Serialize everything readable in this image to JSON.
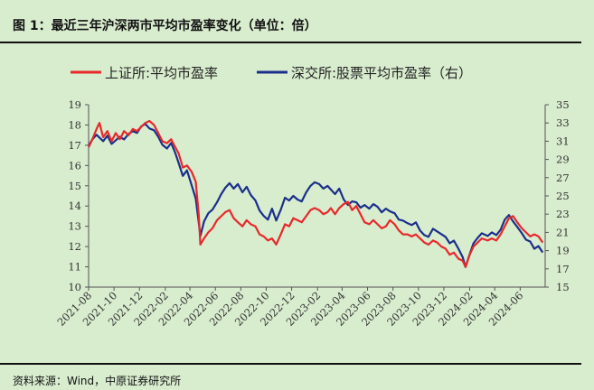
{
  "figure": {
    "title": "图 1：最近三年沪深两市平均市盈率变化（单位：倍）",
    "source": "资料来源：Wind，中原证券研究所"
  },
  "colors": {
    "background": "#d8ecce",
    "sh_series": "#e8282b",
    "sz_series": "#1a2f8a",
    "axis": "#555555"
  },
  "chart_data": {
    "type": "line",
    "title": "",
    "legend_position": "top",
    "grid": false,
    "x_tick_labels": [
      "2021-08",
      "2021-10",
      "2021-12",
      "2022-02",
      "2022-04",
      "2022-06",
      "2022-08",
      "2022-10",
      "2022-12",
      "2023-02",
      "2023-04",
      "2023-06",
      "2023-08",
      "2023-10",
      "2023-12",
      "2024-02",
      "2024-04",
      "2024-06"
    ],
    "x_range": [
      "2021-08-01",
      "2024-07-31"
    ],
    "y_left": {
      "min": 10,
      "max": 19,
      "ticks": [
        10,
        11,
        12,
        13,
        14,
        15,
        16,
        17,
        18,
        19
      ]
    },
    "y_right": {
      "min": 15,
      "max": 35,
      "ticks": [
        15,
        17,
        19,
        21,
        23,
        25,
        27,
        29,
        31,
        33,
        35
      ]
    },
    "series": [
      {
        "name": "上证所:平均市盈率",
        "axis": "left",
        "points": [
          [
            "2021-08-01",
            16.9
          ],
          [
            "2021-08-10",
            17.3
          ],
          [
            "2021-08-20",
            17.8
          ],
          [
            "2021-08-27",
            18.1
          ],
          [
            "2021-09-05",
            17.4
          ],
          [
            "2021-09-15",
            17.7
          ],
          [
            "2021-09-25",
            17.2
          ],
          [
            "2021-10-05",
            17.6
          ],
          [
            "2021-10-15",
            17.3
          ],
          [
            "2021-10-25",
            17.7
          ],
          [
            "2021-11-05",
            17.5
          ],
          [
            "2021-11-15",
            17.8
          ],
          [
            "2021-11-25",
            17.7
          ],
          [
            "2021-12-05",
            17.9
          ],
          [
            "2021-12-15",
            18.1
          ],
          [
            "2021-12-25",
            18.2
          ],
          [
            "2022-01-05",
            18.0
          ],
          [
            "2022-01-15",
            17.6
          ],
          [
            "2022-01-25",
            17.2
          ],
          [
            "2022-02-05",
            17.1
          ],
          [
            "2022-02-15",
            17.3
          ],
          [
            "2022-02-25",
            16.9
          ],
          [
            "2022-03-05",
            16.6
          ],
          [
            "2022-03-15",
            15.9
          ],
          [
            "2022-03-25",
            16.0
          ],
          [
            "2022-04-05",
            15.7
          ],
          [
            "2022-04-15",
            15.2
          ],
          [
            "2022-04-22",
            13.6
          ],
          [
            "2022-04-26",
            12.1
          ],
          [
            "2022-05-05",
            12.4
          ],
          [
            "2022-05-15",
            12.7
          ],
          [
            "2022-05-25",
            12.9
          ],
          [
            "2022-06-05",
            13.3
          ],
          [
            "2022-06-15",
            13.5
          ],
          [
            "2022-06-25",
            13.7
          ],
          [
            "2022-07-05",
            13.8
          ],
          [
            "2022-07-15",
            13.4
          ],
          [
            "2022-07-25",
            13.2
          ],
          [
            "2022-08-05",
            13.0
          ],
          [
            "2022-08-15",
            13.3
          ],
          [
            "2022-08-25",
            13.1
          ],
          [
            "2022-09-05",
            13.0
          ],
          [
            "2022-09-15",
            12.6
          ],
          [
            "2022-09-25",
            12.5
          ],
          [
            "2022-10-05",
            12.3
          ],
          [
            "2022-10-15",
            12.4
          ],
          [
            "2022-10-25",
            12.1
          ],
          [
            "2022-11-05",
            12.6
          ],
          [
            "2022-11-15",
            13.1
          ],
          [
            "2022-11-25",
            13.0
          ],
          [
            "2022-12-05",
            13.4
          ],
          [
            "2022-12-15",
            13.3
          ],
          [
            "2022-12-25",
            13.2
          ],
          [
            "2023-01-05",
            13.5
          ],
          [
            "2023-01-15",
            13.8
          ],
          [
            "2023-01-25",
            13.9
          ],
          [
            "2023-02-05",
            13.8
          ],
          [
            "2023-02-15",
            13.6
          ],
          [
            "2023-02-25",
            13.7
          ],
          [
            "2023-03-05",
            13.9
          ],
          [
            "2023-03-15",
            13.6
          ],
          [
            "2023-03-25",
            13.9
          ],
          [
            "2023-04-05",
            14.1
          ],
          [
            "2023-04-15",
            14.2
          ],
          [
            "2023-04-25",
            13.8
          ],
          [
            "2023-05-05",
            14.0
          ],
          [
            "2023-05-15",
            13.6
          ],
          [
            "2023-05-25",
            13.2
          ],
          [
            "2023-06-05",
            13.1
          ],
          [
            "2023-06-15",
            13.3
          ],
          [
            "2023-06-25",
            13.1
          ],
          [
            "2023-07-05",
            12.9
          ],
          [
            "2023-07-15",
            13.0
          ],
          [
            "2023-07-25",
            13.3
          ],
          [
            "2023-08-05",
            13.1
          ],
          [
            "2023-08-15",
            12.8
          ],
          [
            "2023-08-25",
            12.6
          ],
          [
            "2023-09-05",
            12.6
          ],
          [
            "2023-09-15",
            12.5
          ],
          [
            "2023-09-25",
            12.6
          ],
          [
            "2023-10-05",
            12.4
          ],
          [
            "2023-10-15",
            12.2
          ],
          [
            "2023-10-25",
            12.1
          ],
          [
            "2023-11-05",
            12.3
          ],
          [
            "2023-11-15",
            12.2
          ],
          [
            "2023-11-25",
            12.0
          ],
          [
            "2023-12-05",
            11.9
          ],
          [
            "2023-12-15",
            11.6
          ],
          [
            "2023-12-25",
            11.7
          ],
          [
            "2024-01-05",
            11.4
          ],
          [
            "2024-01-15",
            11.3
          ],
          [
            "2024-01-22",
            11.0
          ],
          [
            "2024-02-01",
            11.6
          ],
          [
            "2024-02-10",
            12.0
          ],
          [
            "2024-02-20",
            12.2
          ],
          [
            "2024-03-01",
            12.4
          ],
          [
            "2024-03-15",
            12.3
          ],
          [
            "2024-03-25",
            12.4
          ],
          [
            "2024-04-05",
            12.3
          ],
          [
            "2024-04-15",
            12.6
          ],
          [
            "2024-04-25",
            13.0
          ],
          [
            "2024-05-05",
            13.4
          ],
          [
            "2024-05-15",
            13.5
          ],
          [
            "2024-05-25",
            13.2
          ],
          [
            "2024-06-05",
            12.9
          ],
          [
            "2024-06-15",
            12.7
          ],
          [
            "2024-06-25",
            12.5
          ],
          [
            "2024-07-05",
            12.6
          ],
          [
            "2024-07-15",
            12.5
          ],
          [
            "2024-07-25",
            12.2
          ]
        ]
      },
      {
        "name": "深交所:股票平均市盈率（右）",
        "axis": "right",
        "points": [
          [
            "2021-08-01",
            30.5
          ],
          [
            "2021-08-10",
            31.2
          ],
          [
            "2021-08-20",
            31.7
          ],
          [
            "2021-08-27",
            31.4
          ],
          [
            "2021-09-05",
            31.0
          ],
          [
            "2021-09-15",
            31.6
          ],
          [
            "2021-09-25",
            30.7
          ],
          [
            "2021-10-05",
            31.1
          ],
          [
            "2021-10-15",
            31.5
          ],
          [
            "2021-10-25",
            31.2
          ],
          [
            "2021-11-05",
            31.8
          ],
          [
            "2021-11-15",
            32.1
          ],
          [
            "2021-11-25",
            31.9
          ],
          [
            "2021-12-05",
            32.6
          ],
          [
            "2021-12-15",
            32.9
          ],
          [
            "2021-12-25",
            32.4
          ],
          [
            "2022-01-05",
            32.2
          ],
          [
            "2022-01-15",
            31.5
          ],
          [
            "2022-01-25",
            30.6
          ],
          [
            "2022-02-05",
            30.2
          ],
          [
            "2022-02-15",
            30.8
          ],
          [
            "2022-02-25",
            29.7
          ],
          [
            "2022-03-05",
            28.6
          ],
          [
            "2022-03-15",
            27.2
          ],
          [
            "2022-03-25",
            27.8
          ],
          [
            "2022-04-05",
            26.2
          ],
          [
            "2022-04-15",
            24.7
          ],
          [
            "2022-04-22",
            22.1
          ],
          [
            "2022-04-26",
            20.6
          ],
          [
            "2022-05-05",
            22.2
          ],
          [
            "2022-05-15",
            23.1
          ],
          [
            "2022-05-25",
            23.5
          ],
          [
            "2022-06-05",
            24.3
          ],
          [
            "2022-06-15",
            25.2
          ],
          [
            "2022-06-25",
            25.9
          ],
          [
            "2022-07-05",
            26.4
          ],
          [
            "2022-07-15",
            25.8
          ],
          [
            "2022-07-25",
            26.3
          ],
          [
            "2022-08-05",
            25.4
          ],
          [
            "2022-08-15",
            26.0
          ],
          [
            "2022-08-25",
            25.1
          ],
          [
            "2022-09-05",
            24.5
          ],
          [
            "2022-09-15",
            23.4
          ],
          [
            "2022-09-25",
            22.8
          ],
          [
            "2022-10-05",
            22.4
          ],
          [
            "2022-10-15",
            23.6
          ],
          [
            "2022-10-25",
            22.3
          ],
          [
            "2022-11-05",
            23.5
          ],
          [
            "2022-11-15",
            24.8
          ],
          [
            "2022-11-25",
            24.5
          ],
          [
            "2022-12-05",
            25.0
          ],
          [
            "2022-12-15",
            24.6
          ],
          [
            "2022-12-25",
            24.4
          ],
          [
            "2023-01-05",
            25.4
          ],
          [
            "2023-01-15",
            26.1
          ],
          [
            "2023-01-25",
            26.5
          ],
          [
            "2023-02-05",
            26.3
          ],
          [
            "2023-02-15",
            25.8
          ],
          [
            "2023-02-25",
            26.1
          ],
          [
            "2023-03-05",
            25.7
          ],
          [
            "2023-03-15",
            25.2
          ],
          [
            "2023-03-25",
            25.8
          ],
          [
            "2023-04-05",
            24.6
          ],
          [
            "2023-04-15",
            24.0
          ],
          [
            "2023-04-25",
            24.4
          ],
          [
            "2023-05-05",
            24.3
          ],
          [
            "2023-05-15",
            23.7
          ],
          [
            "2023-05-25",
            24.0
          ],
          [
            "2023-06-05",
            23.6
          ],
          [
            "2023-06-15",
            24.1
          ],
          [
            "2023-06-25",
            23.8
          ],
          [
            "2023-07-05",
            23.2
          ],
          [
            "2023-07-15",
            23.6
          ],
          [
            "2023-07-25",
            23.3
          ],
          [
            "2023-08-05",
            23.1
          ],
          [
            "2023-08-15",
            22.4
          ],
          [
            "2023-08-25",
            22.3
          ],
          [
            "2023-09-05",
            22.0
          ],
          [
            "2023-09-15",
            21.8
          ],
          [
            "2023-09-25",
            22.1
          ],
          [
            "2023-10-05",
            21.2
          ],
          [
            "2023-10-15",
            20.7
          ],
          [
            "2023-10-25",
            20.5
          ],
          [
            "2023-11-05",
            21.4
          ],
          [
            "2023-11-15",
            21.1
          ],
          [
            "2023-11-25",
            20.8
          ],
          [
            "2023-12-05",
            20.5
          ],
          [
            "2023-12-15",
            19.8
          ],
          [
            "2023-12-25",
            20.1
          ],
          [
            "2024-01-05",
            19.2
          ],
          [
            "2024-01-15",
            18.3
          ],
          [
            "2024-01-22",
            17.2
          ],
          [
            "2024-02-01",
            18.6
          ],
          [
            "2024-02-10",
            19.8
          ],
          [
            "2024-02-20",
            20.4
          ],
          [
            "2024-03-01",
            20.9
          ],
          [
            "2024-03-15",
            20.6
          ],
          [
            "2024-03-25",
            21.0
          ],
          [
            "2024-04-05",
            20.7
          ],
          [
            "2024-04-15",
            21.3
          ],
          [
            "2024-04-25",
            22.4
          ],
          [
            "2024-05-05",
            22.9
          ],
          [
            "2024-05-15",
            22.2
          ],
          [
            "2024-05-25",
            21.6
          ],
          [
            "2024-06-05",
            20.9
          ],
          [
            "2024-06-15",
            20.2
          ],
          [
            "2024-06-25",
            20.0
          ],
          [
            "2024-07-05",
            19.2
          ],
          [
            "2024-07-15",
            19.5
          ],
          [
            "2024-07-25",
            18.8
          ]
        ]
      }
    ]
  }
}
